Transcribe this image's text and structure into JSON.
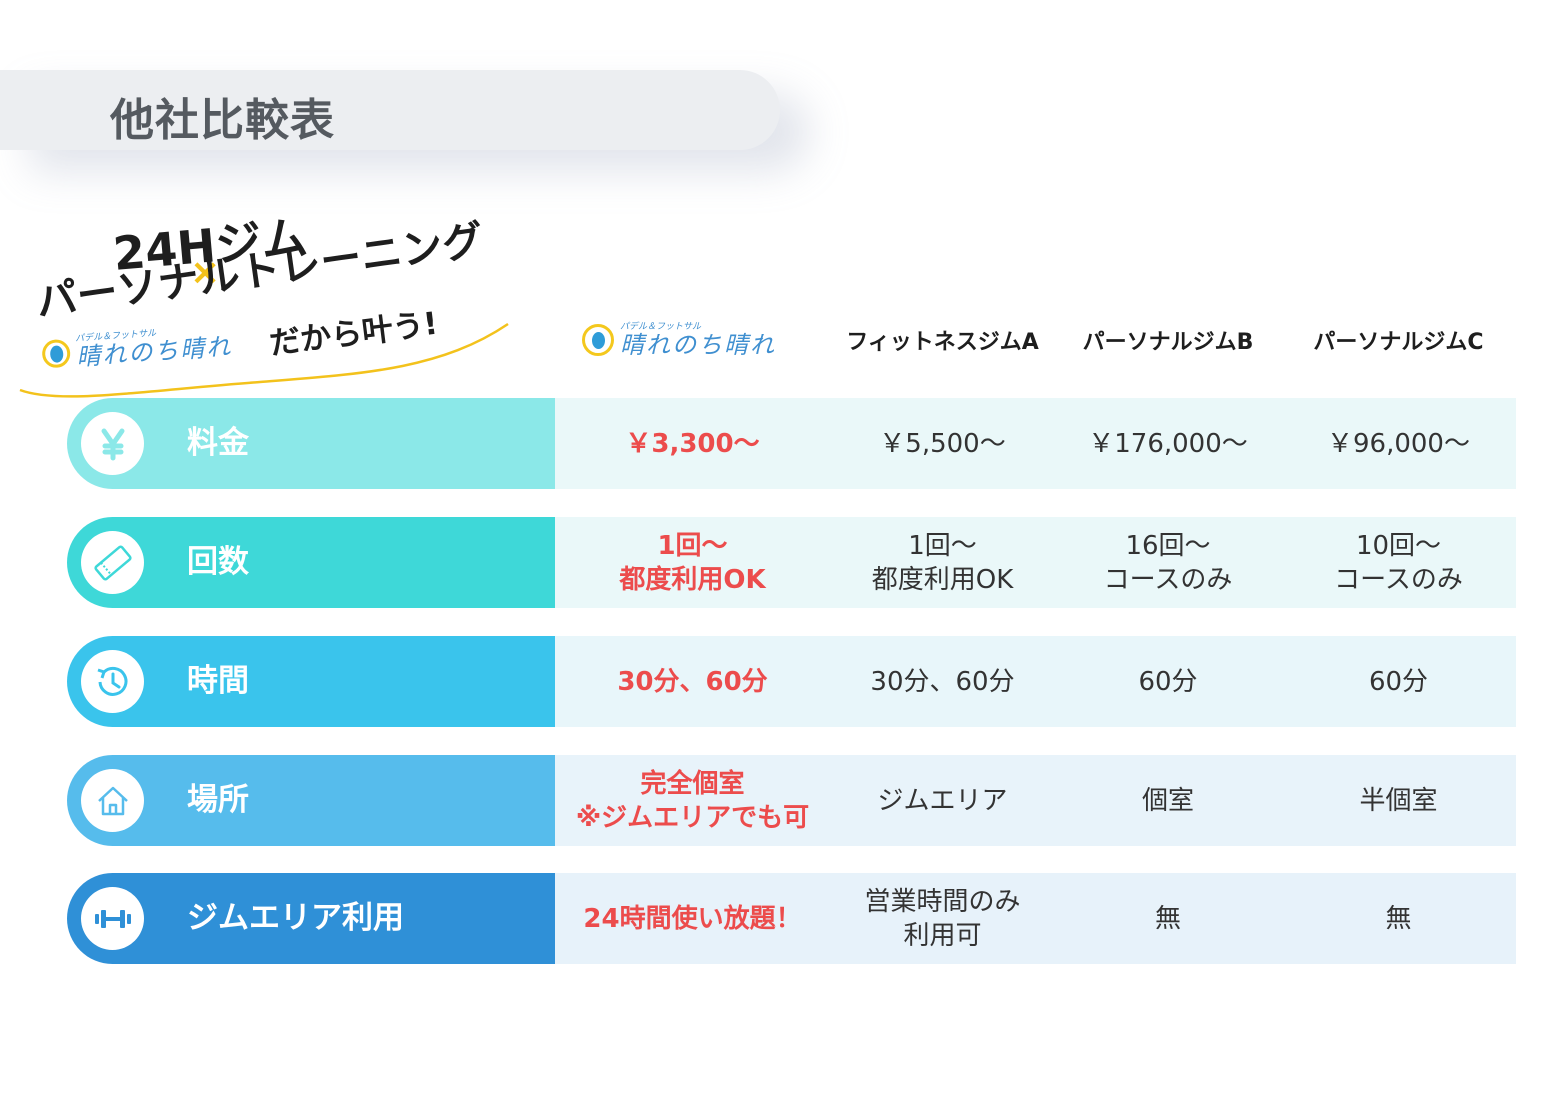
{
  "title": "他社比較表",
  "promo": {
    "line1": "24Hジム",
    "cross": "×",
    "line2": "パーソナルトレーニング",
    "tagline": "だから叶う!"
  },
  "logo": {
    "small_text": "パデル＆フットサル",
    "main_text": "晴れのち晴れ"
  },
  "columns": [
    "フィットネスジムA",
    "パーソナルジムB",
    "パーソナルジムC"
  ],
  "rows": [
    {
      "label": "料金",
      "icon": "yen-icon",
      "color": "#8be8e8",
      "ours": [
        "￥3,300〜"
      ],
      "a": [
        "￥5,500〜"
      ],
      "b": [
        "￥176,000〜"
      ],
      "c": [
        "￥96,000〜"
      ]
    },
    {
      "label": "回数",
      "icon": "ticket-icon",
      "color": "#3ed8d8",
      "ours": [
        "1回〜",
        "都度利用OK"
      ],
      "a": [
        "1回〜",
        "都度利用OK"
      ],
      "b": [
        "16回〜",
        "コースのみ"
      ],
      "c": [
        "10回〜",
        "コースのみ"
      ]
    },
    {
      "label": "時間",
      "icon": "clock-history-icon",
      "color": "#3ac4ec",
      "ours": [
        "30分、60分"
      ],
      "a": [
        "30分、60分"
      ],
      "b": [
        "60分"
      ],
      "c": [
        "60分"
      ]
    },
    {
      "label": "場所",
      "icon": "home-icon",
      "color": "#56bcec",
      "ours": [
        "完全個室",
        "※ジムエリアでも可"
      ],
      "a": [
        "ジムエリア"
      ],
      "b": [
        "個室"
      ],
      "c": [
        "半個室"
      ]
    },
    {
      "label": "ジムエリア利用",
      "icon": "dumbbell-icon",
      "color": "#2f90d7",
      "ours": [
        "24時間使い放題！"
      ],
      "a": [
        "営業時間のみ",
        "利用可"
      ],
      "b": [
        "無"
      ],
      "c": [
        "無"
      ]
    }
  ],
  "colors": {
    "highlight": "#ec4c4c",
    "accent_yellow": "#f3c21c",
    "cell_bg_light": "#eaf8f9"
  }
}
